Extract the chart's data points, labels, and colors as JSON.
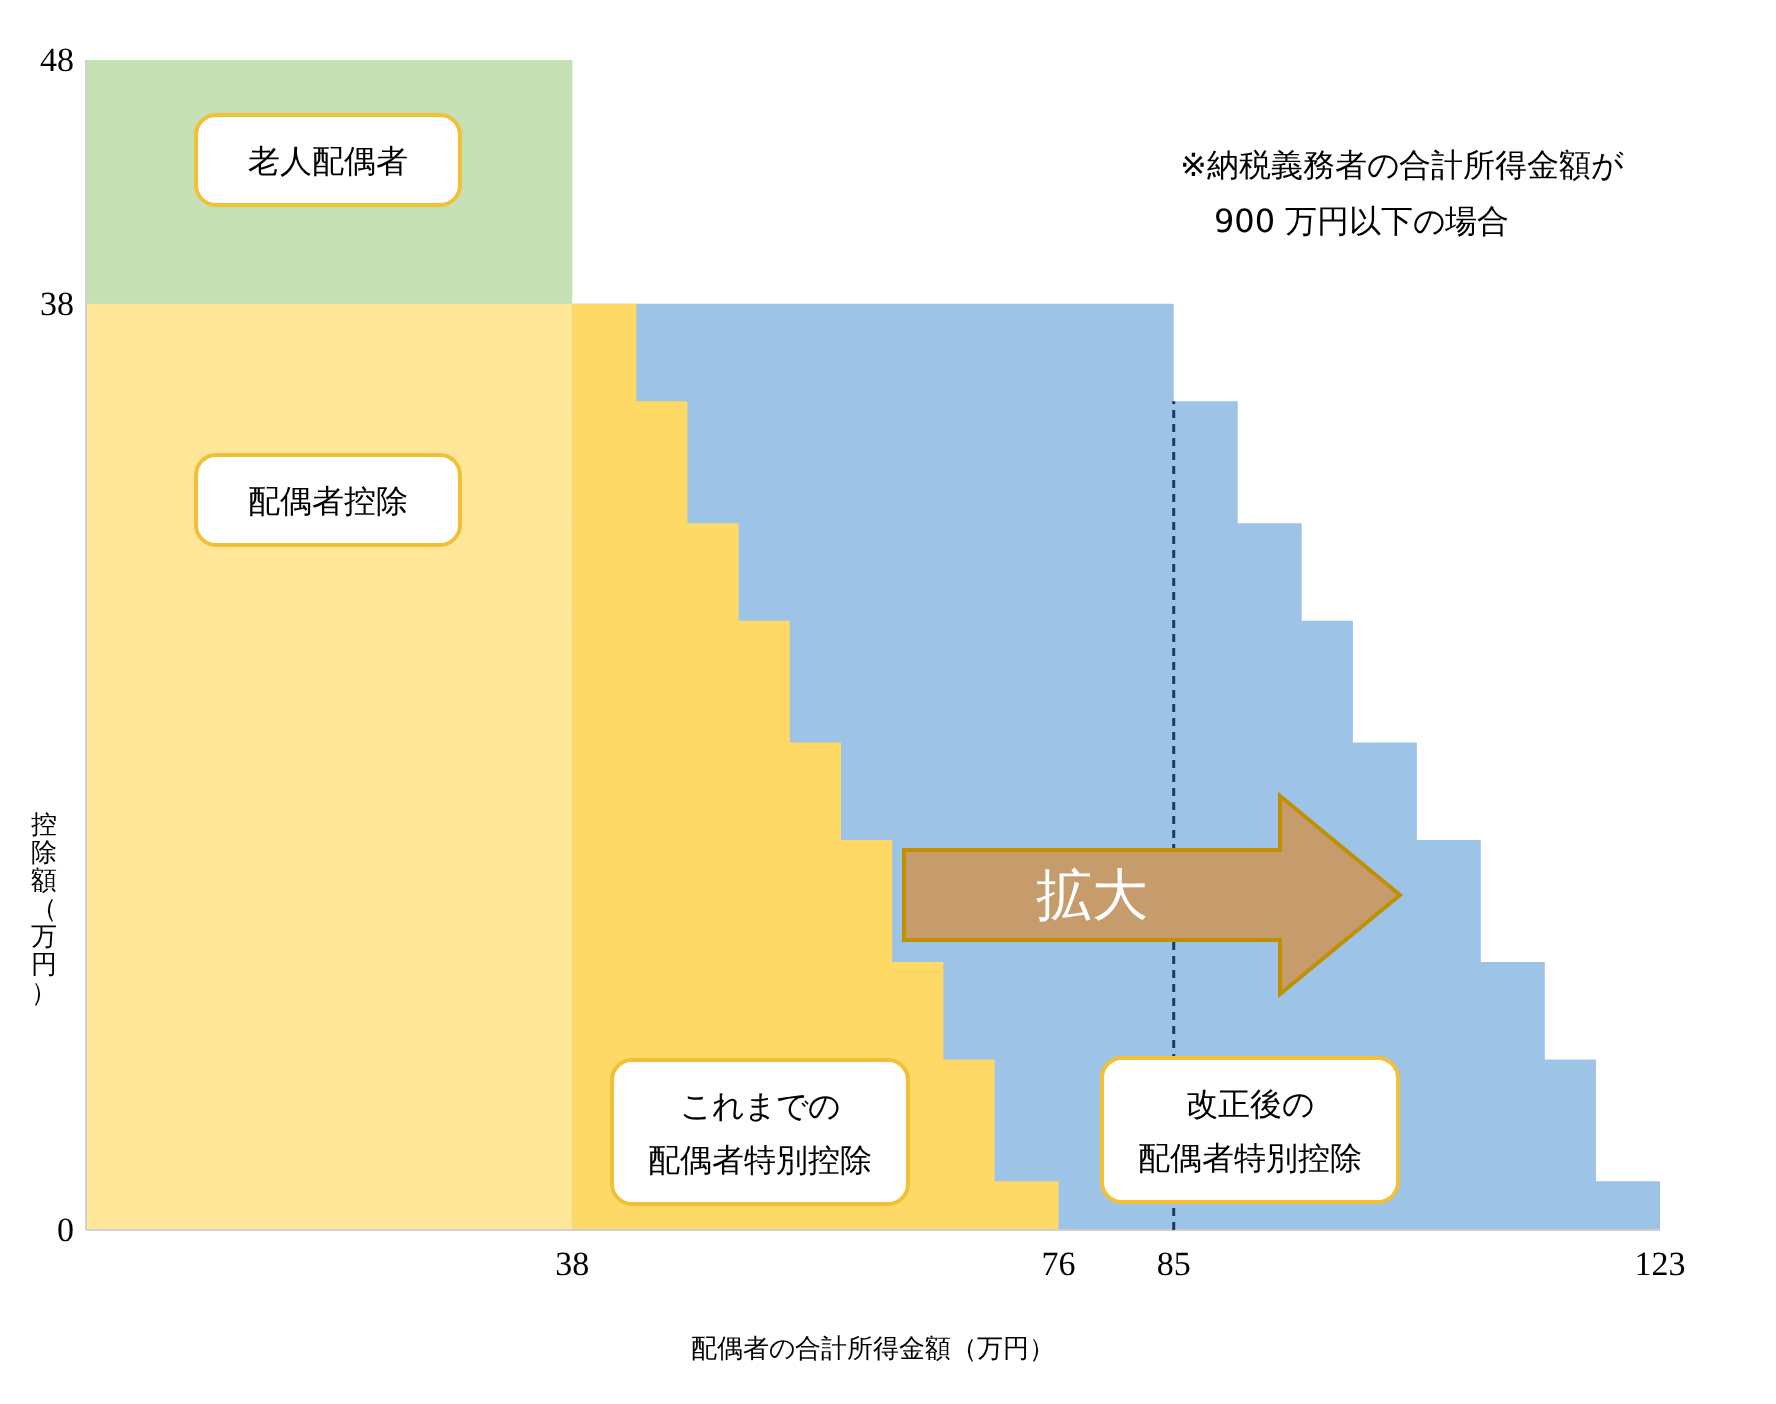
{
  "chart_data": {
    "type": "area",
    "xlabel": "配偶者の合計所得金額（万円）",
    "ylabel": "控除額（万円）",
    "xlim": [
      0,
      123
    ],
    "ylim": [
      0,
      48
    ],
    "xticks": [
      38,
      76,
      85,
      123
    ],
    "yticks": [
      0,
      38,
      48
    ],
    "series": [
      {
        "name": "老人配偶者",
        "color": "#c5e0b4",
        "x": [
          0,
          38
        ],
        "values": [
          48,
          48
        ]
      },
      {
        "name": "配偶者控除",
        "color": "#ffe699",
        "x": [
          0,
          38
        ],
        "values": [
          38,
          38
        ]
      },
      {
        "name": "改正後の配偶者特別控除",
        "color": "#9dc3e6",
        "x": [
          38,
          85,
          85,
          90,
          90,
          95,
          95,
          99,
          99,
          104,
          104,
          109,
          109,
          114,
          114,
          118,
          118,
          123
        ],
        "values": [
          38,
          38,
          34,
          34,
          29,
          29,
          25,
          25,
          20,
          20,
          16,
          16,
          11,
          11,
          7,
          7,
          2,
          2
        ]
      },
      {
        "name": "これまでの配偶者特別控除",
        "color": "#ffd966",
        "x": [
          38,
          43,
          43,
          47,
          47,
          51,
          51,
          55,
          55,
          59,
          59,
          63,
          63,
          67,
          67,
          71,
          71,
          76
        ],
        "values": [
          38,
          38,
          34,
          34,
          29,
          29,
          25,
          25,
          20,
          20,
          16,
          16,
          11,
          11,
          7,
          7,
          2,
          2
        ]
      }
    ],
    "ref_lines": [
      {
        "axis": "x",
        "value": 85,
        "line_style": "dashed",
        "color": "#1f3864"
      }
    ],
    "annotations": [
      "※納税義務者の合計所得金額が\n900 万円以下の場合",
      "拡大"
    ]
  }
}
